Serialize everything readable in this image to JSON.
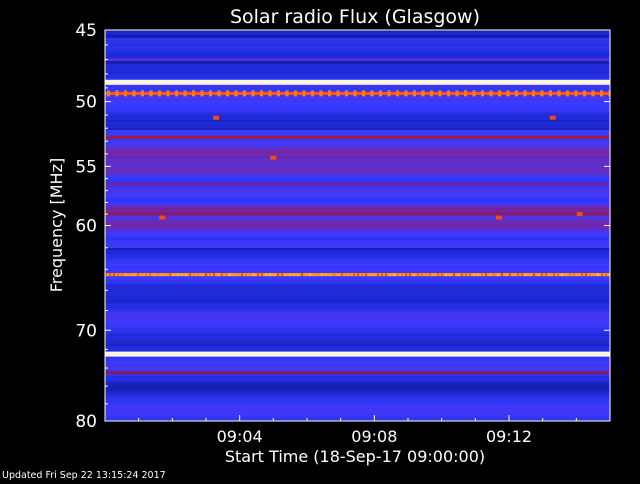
{
  "chart_data": {
    "type": "heatmap",
    "title": "Solar radio Flux (Glasgow)",
    "ylabel": "Frequency [MHz]",
    "xlabel": "Start Time (18-Sep-17 09:00:00)",
    "footer": "Updated Fri Sep 22 13:15:24 2017",
    "y_ticks": [
      "45",
      "50",
      "55",
      "60",
      "70",
      "80"
    ],
    "y_tick_values": [
      45,
      50,
      55,
      60,
      70,
      80
    ],
    "x_ticks": [
      "09:04",
      "09:08",
      "09:12"
    ],
    "x_tick_minutes": [
      4,
      8,
      12
    ],
    "x_range_minutes": [
      0,
      15
    ],
    "y_range_mhz": [
      45,
      80
    ],
    "y_scale": "logarithmic",
    "colormap": [
      "#0a0a6e",
      "#1e2ad8",
      "#3a3aff",
      "#6a2ab8",
      "#8a1a5a",
      "#c81e10",
      "#ff5a10",
      "#ffb030",
      "#fff5e0"
    ],
    "bands": [
      {
        "freq_mhz": 45.2,
        "level": 0.12
      },
      {
        "freq_mhz": 47.0,
        "level": 0.3
      },
      {
        "freq_mhz": 48.6,
        "level": 1.0
      },
      {
        "freq_mhz": 49.4,
        "level": 0.75
      },
      {
        "freq_mhz": 52.7,
        "level": 0.55
      },
      {
        "freq_mhz": 56.5,
        "level": 0.42
      },
      {
        "freq_mhz": 59.0,
        "level": 0.48
      },
      {
        "freq_mhz": 64.5,
        "level": 0.85
      },
      {
        "freq_mhz": 68.5,
        "level": 0.3
      },
      {
        "freq_mhz": 72.5,
        "level": 1.0
      },
      {
        "freq_mhz": 74.5,
        "level": 0.5
      }
    ],
    "bursts": [
      {
        "time_min": 1.7,
        "freq_mhz": 59.3
      },
      {
        "time_min": 3.3,
        "freq_mhz": 51.2
      },
      {
        "time_min": 5.0,
        "freq_mhz": 54.3
      },
      {
        "time_min": 11.7,
        "freq_mhz": 59.3
      },
      {
        "time_min": 13.3,
        "freq_mhz": 51.2
      },
      {
        "time_min": 14.1,
        "freq_mhz": 59.0
      }
    ]
  },
  "colors": {
    "background": "#000000",
    "text": "#ffffff",
    "axis": "#ffffff"
  }
}
